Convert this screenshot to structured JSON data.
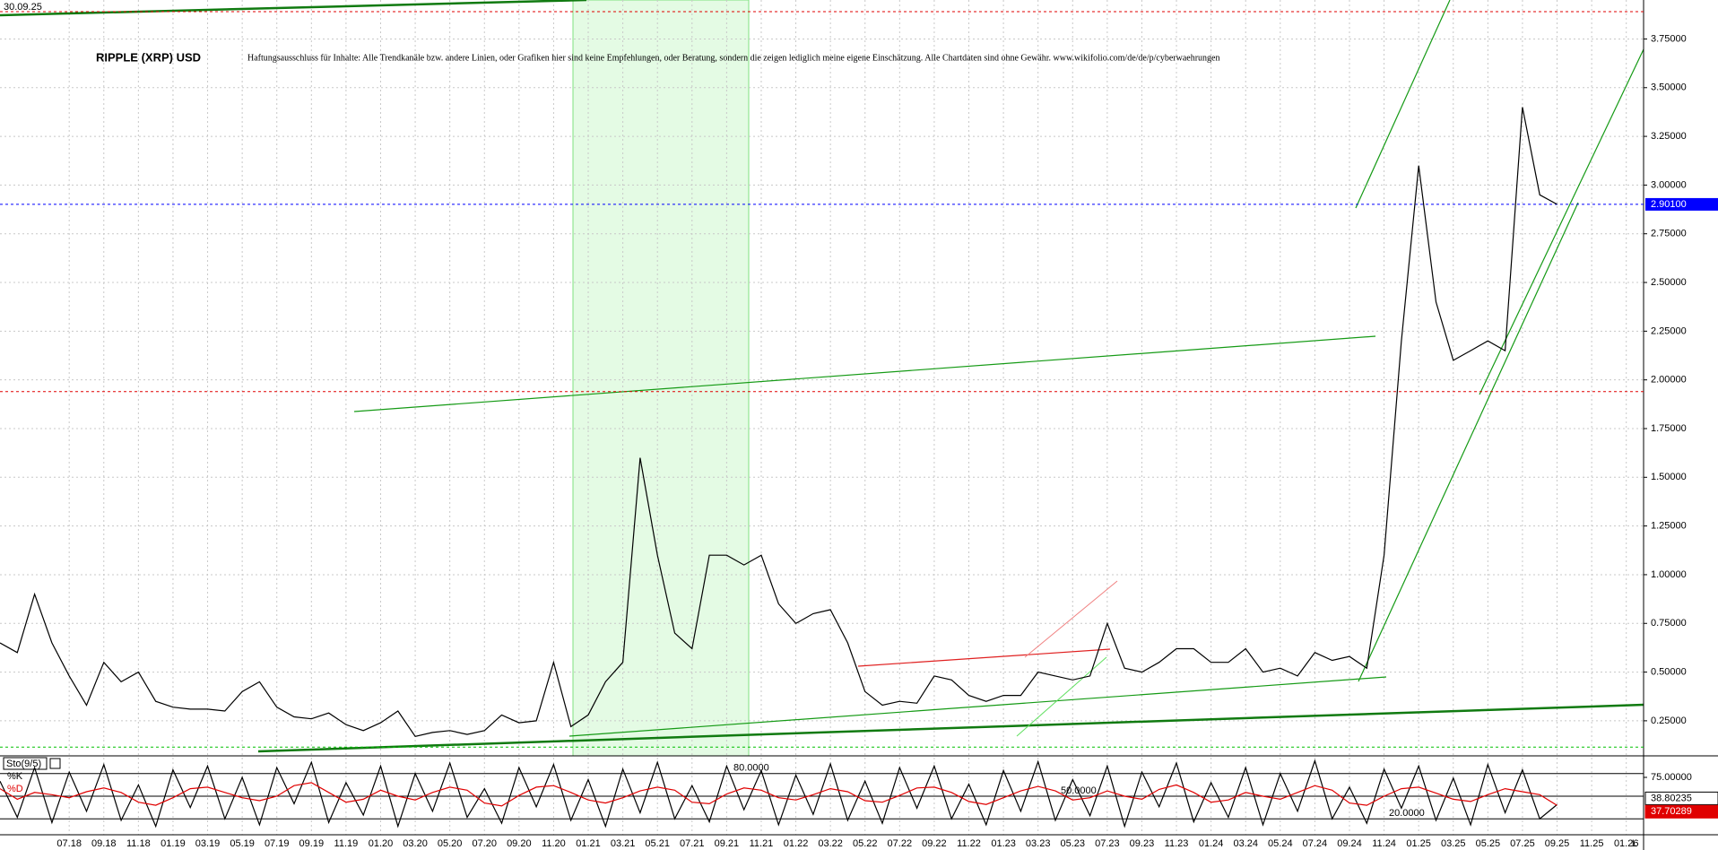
{
  "chart_data": [
    {
      "type": "line",
      "title": "RIPPLE (XRP) USD",
      "subtitle": "Haftungsausschluss für Inhalte: Alle Trendkanäle bzw. andere Linien, oder Grafiken hier sind keine Empfehlungen, oder Beratung, sondern die zeigen lediglich meine eigene Einschätzung. Alle Chartdaten sind ohne Gewähr. www.wikifolio.com/de/de/p/cyberwaehrungen",
      "date_label": "30.09.25",
      "xlim": [
        "03.18",
        "02.26"
      ],
      "xticks": [
        "07.18",
        "09.18",
        "11.18",
        "01.19",
        "03.19",
        "05.19",
        "07.19",
        "09.19",
        "11.19",
        "01.20",
        "03.20",
        "05.20",
        "07.20",
        "09.20",
        "11.20",
        "01.21",
        "03.21",
        "05.21",
        "07.21",
        "09.21",
        "11.21",
        "01.22",
        "03.22",
        "05.22",
        "07.22",
        "09.22",
        "11.22",
        "01.23",
        "03.23",
        "05.23",
        "07.23",
        "09.23",
        "11.23",
        "01.24",
        "03.24",
        "05.24",
        "07.24",
        "09.24",
        "11.24",
        "01.25",
        "03.25",
        "05.25",
        "07.25",
        "09.25",
        "11.25",
        "01.26"
      ],
      "x_end_label": "L",
      "x": [
        "03.18",
        "04.18",
        "05.18",
        "06.18",
        "07.18",
        "08.18",
        "09.18",
        "10.18",
        "11.18",
        "12.18",
        "01.19",
        "02.19",
        "03.19",
        "04.19",
        "05.19",
        "06.19",
        "07.19",
        "08.19",
        "09.19",
        "10.19",
        "11.19",
        "12.19",
        "01.20",
        "02.20",
        "03.20",
        "04.20",
        "05.20",
        "06.20",
        "07.20",
        "08.20",
        "09.20",
        "10.20",
        "11.20",
        "12.20",
        "01.21",
        "02.21",
        "03.21",
        "04.21",
        "05.21",
        "06.21",
        "07.21",
        "08.21",
        "09.21",
        "10.21",
        "11.21",
        "12.21",
        "01.22",
        "02.22",
        "03.22",
        "04.22",
        "05.22",
        "06.22",
        "07.22",
        "08.22",
        "09.22",
        "10.22",
        "11.22",
        "12.22",
        "01.23",
        "02.23",
        "03.23",
        "04.23",
        "05.23",
        "06.23",
        "07.23",
        "08.23",
        "09.23",
        "10.23",
        "11.23",
        "12.23",
        "01.24",
        "02.24",
        "03.24",
        "04.24",
        "05.24",
        "06.24",
        "07.24",
        "08.24",
        "09.24",
        "10.24",
        "11.24",
        "12.24",
        "01.25",
        "02.25",
        "03.25",
        "04.25",
        "05.25",
        "06.25",
        "07.25",
        "08.25",
        "09.25"
      ],
      "series": [
        {
          "color": "#000000",
          "values": [
            0.65,
            0.6,
            0.9,
            0.65,
            0.48,
            0.33,
            0.55,
            0.45,
            0.5,
            0.35,
            0.32,
            0.31,
            0.31,
            0.3,
            0.4,
            0.45,
            0.32,
            0.27,
            0.26,
            0.29,
            0.23,
            0.2,
            0.24,
            0.3,
            0.17,
            0.19,
            0.2,
            0.18,
            0.2,
            0.28,
            0.24,
            0.25,
            0.55,
            0.22,
            0.28,
            0.45,
            0.55,
            1.6,
            1.1,
            0.7,
            0.62,
            1.1,
            1.1,
            1.05,
            1.1,
            0.85,
            0.75,
            0.8,
            0.82,
            0.65,
            0.4,
            0.33,
            0.35,
            0.34,
            0.48,
            0.46,
            0.38,
            0.35,
            0.38,
            0.38,
            0.5,
            0.48,
            0.46,
            0.48,
            0.75,
            0.52,
            0.5,
            0.55,
            0.62,
            0.62,
            0.55,
            0.55,
            0.62,
            0.5,
            0.52,
            0.48,
            0.6,
            0.56,
            0.58,
            0.52,
            1.1,
            2.2,
            3.1,
            2.4,
            2.1,
            2.15,
            2.2,
            2.15,
            3.4,
            2.95,
            2.901
          ]
        }
      ],
      "ylim": [
        0.07,
        3.95
      ],
      "yticks": [
        {
          "value": 0.25,
          "label": "0.25000"
        },
        {
          "value": 0.5,
          "label": "0.50000"
        },
        {
          "value": 0.75,
          "label": "0.75000"
        },
        {
          "value": 1,
          "label": "1.00000"
        },
        {
          "value": 1.25,
          "label": "1.25000"
        },
        {
          "value": 1.5,
          "label": "1.50000"
        },
        {
          "value": 1.75,
          "label": "1.75000"
        },
        {
          "value": 2,
          "label": "2.00000"
        },
        {
          "value": 2.25,
          "label": "2.25000"
        },
        {
          "value": 2.5,
          "label": "2.50000"
        },
        {
          "value": 2.75,
          "label": "2.75000"
        },
        {
          "value": 3,
          "label": "3.00000"
        },
        {
          "value": 3.25,
          "label": "3.25000"
        },
        {
          "value": 3.5,
          "label": "3.50000"
        },
        {
          "value": 3.75,
          "label": "3.75000"
        }
      ],
      "current_price": {
        "value": 2.901,
        "label": "2.90100",
        "color": "#0000ff"
      },
      "hlines": [
        {
          "value": 3.89,
          "color": "#e00000"
        },
        {
          "value": 1.94,
          "color": "#e00000"
        },
        {
          "value": 0.115,
          "color": "#00c000"
        }
      ],
      "grid": true
    },
    {
      "type": "line",
      "title": "Sto(9/5)",
      "series": [
        {
          "name": "%K",
          "color": "#000000",
          "values": [
            70,
            22,
            88,
            15,
            82,
            30,
            92,
            18,
            65,
            10,
            85,
            35,
            90,
            20,
            75,
            12,
            88,
            40,
            95,
            15,
            68,
            25,
            90,
            10,
            80,
            30,
            94,
            22,
            60,
            14,
            88,
            36,
            92,
            18,
            72,
            10,
            86,
            28,
            95,
            20,
            64,
            16,
            90,
            32,
            84,
            12,
            78,
            26,
            93,
            18,
            70,
            14,
            88,
            34,
            90,
            20,
            66,
            12,
            84,
            30,
            96,
            18,
            72,
            24,
            90,
            10,
            82,
            36,
            94,
            16,
            68,
            22,
            88,
            12,
            80,
            30,
            97,
            20,
            62,
            14,
            86,
            34,
            90,
            18,
            74,
            12,
            92,
            28,
            85,
            20,
            38.80235
          ]
        },
        {
          "name": "%D",
          "color": "#e00000",
          "values": [
            60,
            46,
            55,
            52,
            48,
            56,
            61,
            55,
            42,
            38,
            48,
            60,
            62,
            55,
            48,
            44,
            50,
            64,
            68,
            55,
            42,
            46,
            58,
            50,
            45,
            55,
            62,
            58,
            41,
            37,
            51,
            62,
            64,
            55,
            45,
            41,
            48,
            57,
            62,
            58,
            42,
            40,
            53,
            61,
            58,
            48,
            45,
            52,
            60,
            56,
            44,
            42,
            51,
            61,
            62,
            55,
            43,
            39,
            48,
            57,
            63,
            57,
            45,
            48,
            57,
            50,
            46,
            59,
            65,
            55,
            42,
            45,
            55,
            50,
            46,
            55,
            64,
            58,
            41,
            38,
            50,
            60,
            62,
            54,
            46,
            43,
            52,
            60,
            56,
            52,
            37.70289
          ]
        }
      ],
      "ylim": [
        0,
        100
      ],
      "yticks": [
        {
          "value": 75,
          "label": "75.00000"
        }
      ],
      "levels": [
        {
          "value": 80,
          "label": "80.0000"
        },
        {
          "value": 50,
          "label": "50.0000"
        },
        {
          "value": 20,
          "label": "20.0000"
        }
      ]
    }
  ]
}
